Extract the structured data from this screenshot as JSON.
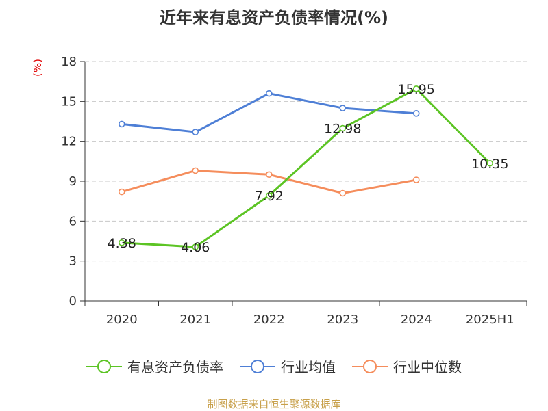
{
  "chart_data": {
    "type": "line",
    "title": "近年来有息资产负债率情况(%)",
    "y_unit": "(%)",
    "categories": [
      "2020",
      "2021",
      "2022",
      "2023",
      "2024",
      "2025H1"
    ],
    "ylim": [
      0,
      18
    ],
    "yticks": [
      0,
      3,
      6,
      9,
      12,
      15,
      18
    ],
    "grid": true,
    "legend_position": "bottom",
    "series": [
      {
        "name": "有息资产负债率",
        "color": "#5cc424",
        "values": [
          4.38,
          4.06,
          7.92,
          12.98,
          15.95,
          10.35
        ],
        "labels": [
          "4.38",
          "4.06",
          "7.92",
          "12.98",
          "15.95",
          "10.35"
        ]
      },
      {
        "name": "行业均值",
        "color": "#4e7fd6",
        "values": [
          13.3,
          12.7,
          15.6,
          14.5,
          14.1,
          null
        ]
      },
      {
        "name": "行业中位数",
        "color": "#f58d5c",
        "values": [
          8.2,
          9.8,
          9.5,
          8.1,
          9.1,
          null
        ]
      }
    ],
    "source": "制图数据来自恒生聚源数据库"
  }
}
